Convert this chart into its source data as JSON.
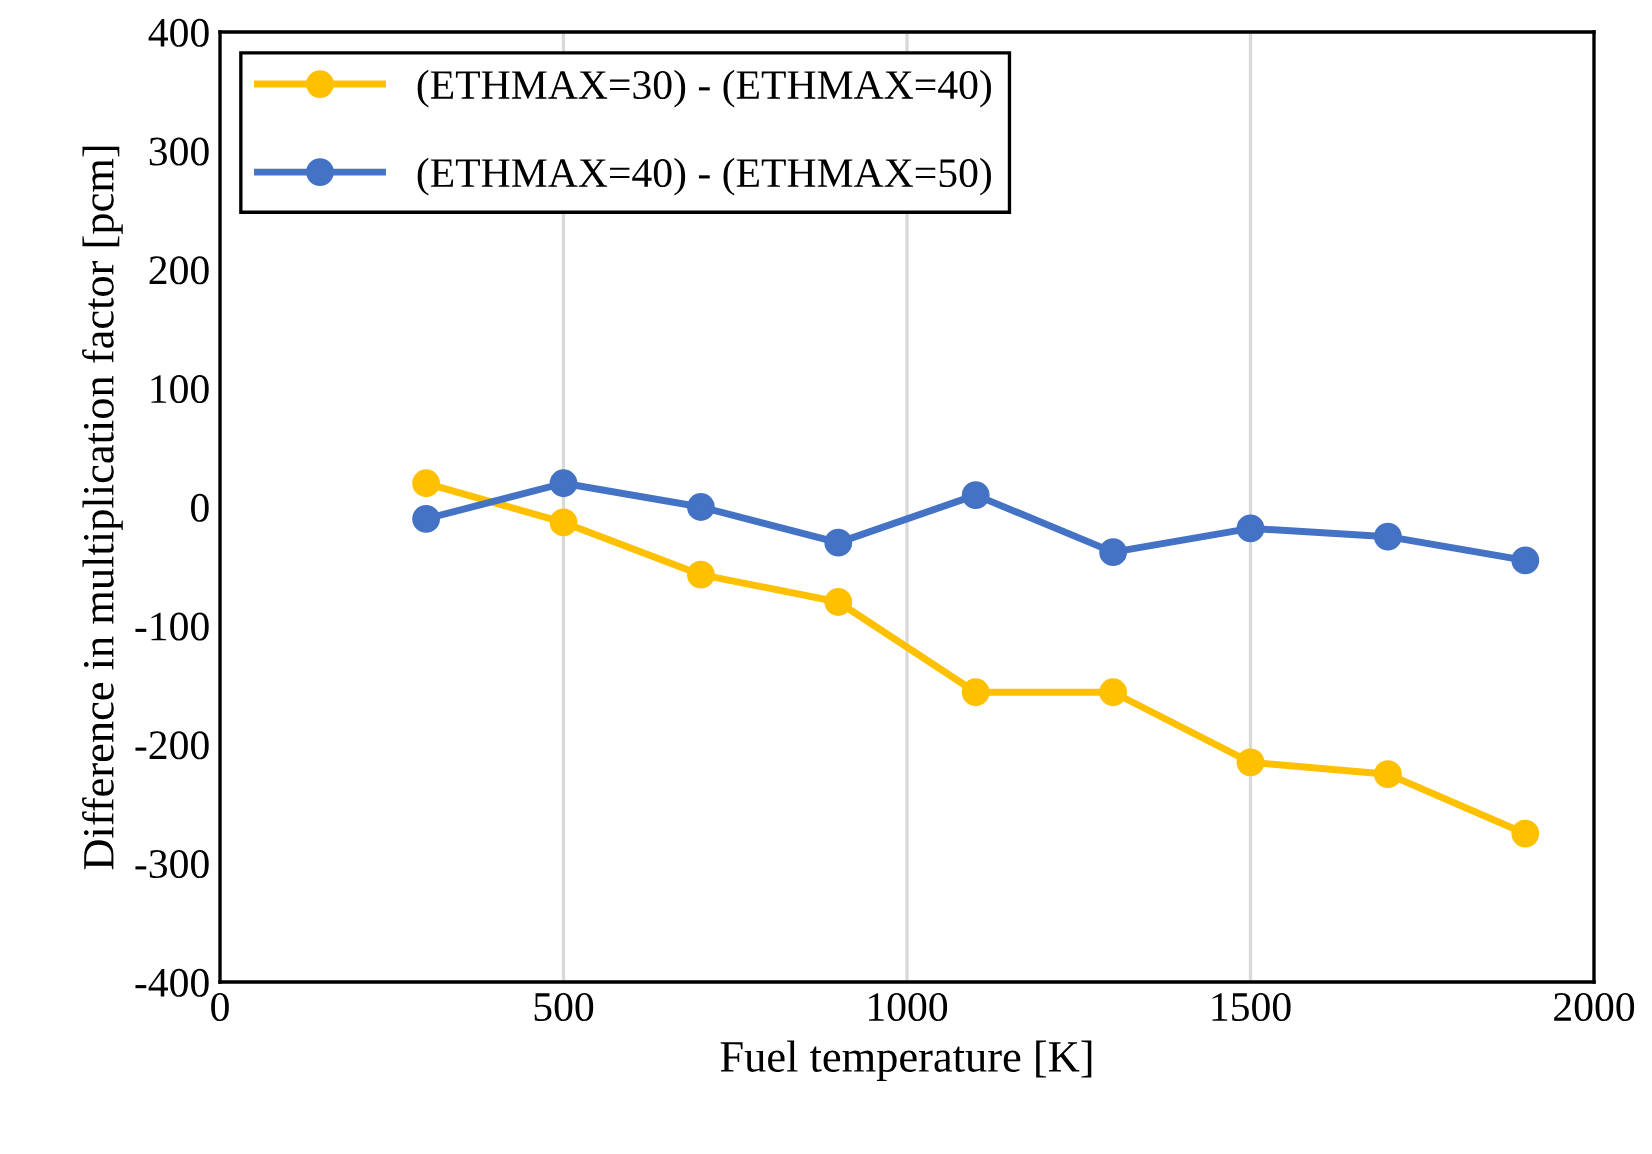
{
  "chart_data": {
    "type": "line",
    "xlabel": "Fuel temperature [K]",
    "ylabel": "Difference in multiplication factor [pcm]",
    "x": [
      300,
      500,
      700,
      900,
      1100,
      1300,
      1500,
      1700,
      1900
    ],
    "series": [
      {
        "name": "(ETHMAX=30) - (ETHMAX=40)",
        "color": "#ffc000",
        "values": [
          20,
          -13,
          -57,
          -80,
          -156,
          -156,
          -215,
          -225,
          -275
        ]
      },
      {
        "name": "(ETHMAX=40) - (ETHMAX=50)",
        "color": "#4472c4",
        "values": [
          -10,
          20,
          0,
          -30,
          10,
          -38,
          -18,
          -25,
          -45
        ]
      }
    ],
    "xlim": [
      0,
      2000
    ],
    "xticks": [
      0,
      500,
      1000,
      1500,
      2000
    ],
    "ylim": [
      -400,
      400
    ],
    "yticks": [
      -400,
      -300,
      -200,
      -100,
      0,
      100,
      200,
      300,
      400
    ],
    "grid": "x",
    "legend": "top left",
    "marker": "circle",
    "line_style": "solid"
  }
}
